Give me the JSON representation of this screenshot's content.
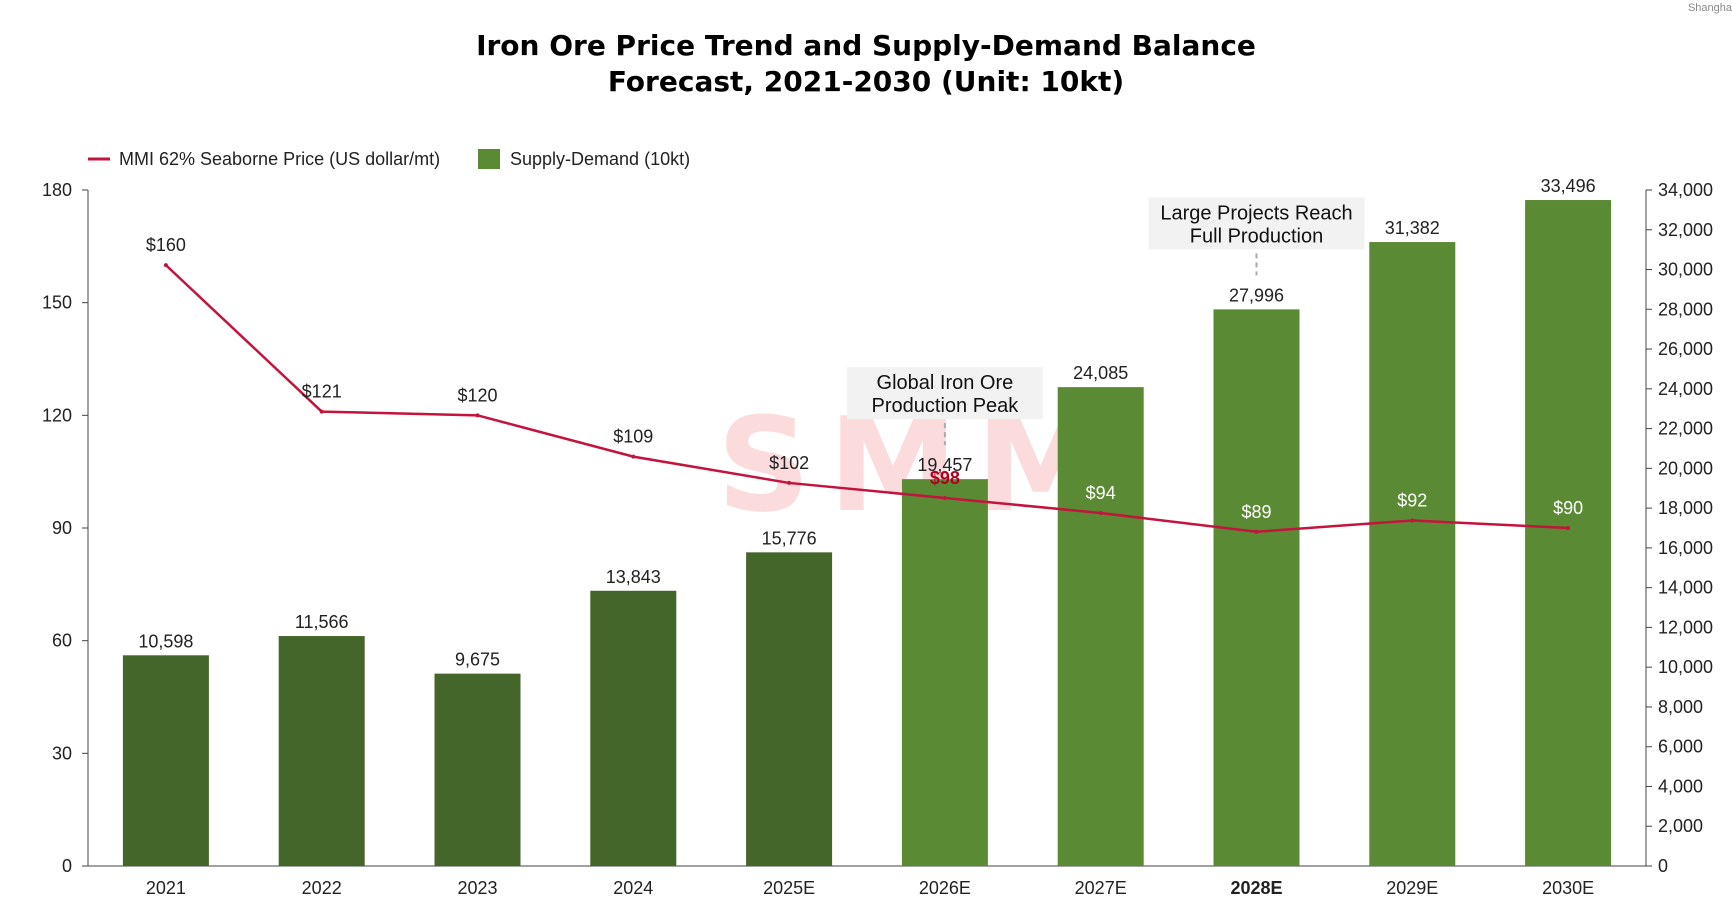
{
  "source_note": "Shangha",
  "chart_data": {
    "type": "bar",
    "title_lines": [
      "Iron Ore Price Trend and Supply-Demand Balance",
      "Forecast, 2021-2030 (Unit: 10kt)"
    ],
    "categories": [
      "2021",
      "2022",
      "2023",
      "2024",
      "2025E",
      "2026E",
      "2027E",
      "2028E",
      "2029E",
      "2030E"
    ],
    "highlight_category": "2028E",
    "series": [
      {
        "name": "Supply-Demand (10kt)",
        "type": "bar",
        "axis": "right",
        "values": [
          10598,
          11566,
          9675,
          13843,
          15776,
          19457,
          24085,
          27996,
          31382,
          33496
        ],
        "labels": [
          "10,598",
          "11,566",
          "9,675",
          "13,843",
          "15,776",
          "19,457",
          "24,085",
          "27,996",
          "31,382",
          "33,496"
        ],
        "color_actual": "#44662a",
        "color_forecast": "#5b8a35",
        "forecast_from_index": 5
      },
      {
        "name": "MMI 62% Seaborne Price (US dollar/mt)",
        "type": "line",
        "axis": "left",
        "values": [
          160,
          121,
          120,
          109,
          102,
          98,
          94,
          89,
          92,
          90
        ],
        "labels": [
          "$160",
          "$121",
          "$120",
          "$109",
          "$102",
          "$98",
          "$94",
          "$89",
          "$92",
          "$90"
        ],
        "color": "#c4133c"
      }
    ],
    "y_left": {
      "min": 0,
      "max": 180,
      "ticks": [
        "0",
        "30",
        "60",
        "90",
        "120",
        "150",
        "180"
      ]
    },
    "y_right": {
      "min": 0,
      "max": 34000,
      "ticks": [
        "0",
        "2,000",
        "4,000",
        "6,000",
        "8,000",
        "10,000",
        "12,000",
        "14,000",
        "16,000",
        "18,000",
        "20,000",
        "22,000",
        "24,000",
        "26,000",
        "28,000",
        "30,000",
        "32,000",
        "34,000"
      ]
    },
    "legend_position": "top-left",
    "annotations": [
      {
        "category": "2026E",
        "lines": [
          "Global Iron Ore",
          "Production Peak"
        ]
      },
      {
        "category": "2028E",
        "lines": [
          "Large Projects Reach",
          "Full Production"
        ]
      }
    ],
    "grid": false
  }
}
